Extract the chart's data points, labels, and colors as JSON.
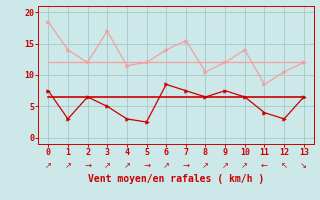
{
  "x": [
    0,
    1,
    2,
    3,
    4,
    5,
    6,
    7,
    8,
    9,
    10,
    11,
    12,
    13
  ],
  "rafales": [
    18.5,
    14,
    12,
    17,
    11.5,
    12,
    14,
    15.5,
    10.5,
    12,
    14,
    8.5,
    10.5,
    12
  ],
  "moyen_line": [
    12,
    12,
    12,
    12,
    12,
    12,
    12,
    12,
    12,
    12,
    12,
    12,
    12,
    12
  ],
  "vent_moyen": [
    7.5,
    3,
    6.5,
    5,
    3,
    2.5,
    8.5,
    7.5,
    6.5,
    7.5,
    6.5,
    4,
    3,
    6.5
  ],
  "vent_ref": [
    6.5,
    6.5,
    6.5,
    6.5,
    6.5,
    6.5,
    6.5,
    6.5,
    6.5,
    6.5,
    6.5,
    6.5,
    6.5,
    6.5
  ],
  "bg_color": "#cce8e8",
  "grid_color": "#aacccc",
  "line_color_rafales": "#f4a0a0",
  "line_color_moyen": "#cc0000",
  "xlabel": "Vent moyen/en rafales ( km/h )",
  "xlabel_color": "#cc0000",
  "tick_color": "#cc0000",
  "ylim": [
    -1,
    21
  ],
  "yticks": [
    0,
    5,
    10,
    15,
    20
  ],
  "xlim": [
    -0.5,
    13.5
  ],
  "arrow_symbols": [
    "↗",
    "↗",
    "→",
    "↗",
    "↗",
    "→",
    "↗",
    "→",
    "↗",
    "↗",
    "↗",
    "←",
    "↖",
    "↘"
  ]
}
